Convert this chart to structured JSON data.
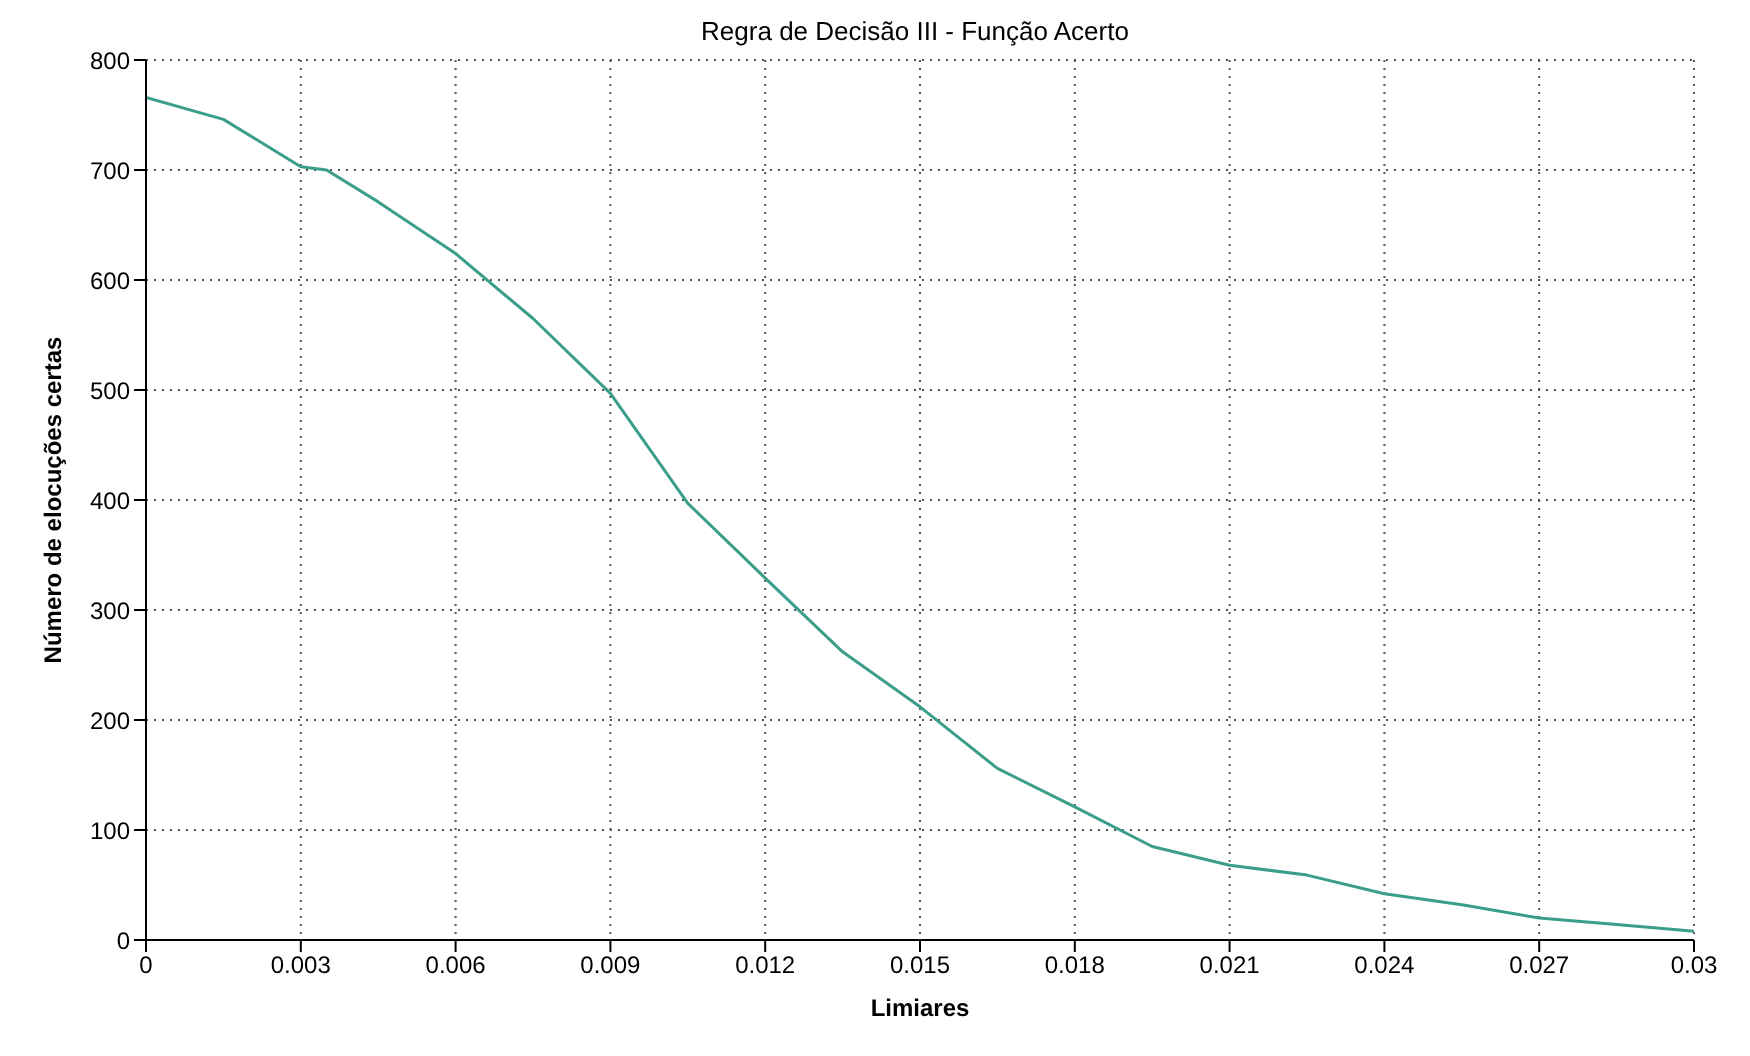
{
  "chart_data": {
    "type": "line",
    "title": "Regra de Decisão III - Função Acerto",
    "xlabel": "Limiares",
    "ylabel": "Número de elocuções certas",
    "x": [
      0,
      0.0015,
      0.003,
      0.0035,
      0.0045,
      0.006,
      0.0075,
      0.009,
      0.0105,
      0.012,
      0.0135,
      0.015,
      0.0165,
      0.018,
      0.0195,
      0.021,
      0.0225,
      0.024,
      0.0255,
      0.027,
      0.0285,
      0.03
    ],
    "series": [
      {
        "color": "#3a9e8a",
        "values": [
          766,
          746,
          703,
          700,
          671,
          624,
          565,
          497,
          397,
          329,
          262,
          212,
          156,
          121,
          85,
          68,
          59,
          42,
          32,
          20,
          14,
          8
        ]
      }
    ],
    "xlim": [
      0,
      0.03
    ],
    "xticks": [
      0,
      0.003,
      0.006,
      0.009,
      0.012,
      0.015,
      0.018,
      0.021,
      0.024,
      0.027,
      0.03
    ],
    "ylim": [
      0,
      800
    ],
    "yticks": [
      0,
      100,
      200,
      300,
      400,
      500,
      600,
      700,
      800
    ],
    "grid": true,
    "marker": "none",
    "line_style": "solid"
  }
}
